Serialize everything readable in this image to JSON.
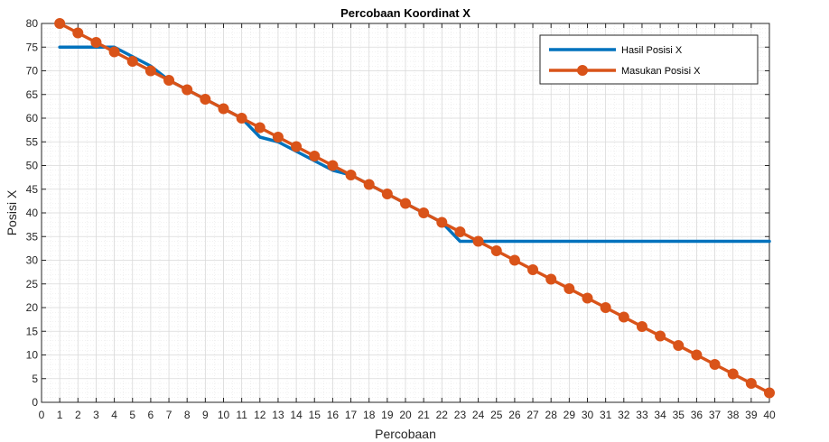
{
  "chart_data": {
    "type": "line",
    "title": "Percobaan Koordinat X",
    "xlabel": "Percobaan",
    "ylabel": "Posisi X",
    "xlim": [
      0,
      40
    ],
    "ylim": [
      0,
      80
    ],
    "xticks": [
      0,
      1,
      2,
      3,
      4,
      5,
      6,
      7,
      8,
      9,
      10,
      11,
      12,
      13,
      14,
      15,
      16,
      17,
      18,
      19,
      20,
      21,
      22,
      23,
      24,
      25,
      26,
      27,
      28,
      29,
      30,
      31,
      32,
      33,
      34,
      35,
      36,
      37,
      38,
      39,
      40
    ],
    "yticks": [
      0,
      5,
      10,
      15,
      20,
      25,
      30,
      35,
      40,
      45,
      50,
      55,
      60,
      65,
      70,
      75,
      80
    ],
    "grid": true,
    "minor_grid": true,
    "legend_position": "top-right",
    "series": [
      {
        "name": "Hasil Posisi X",
        "color": "#0072BD",
        "marker": "none",
        "x": [
          1,
          2,
          3,
          4,
          5,
          6,
          7,
          8,
          9,
          10,
          11,
          12,
          13,
          14,
          15,
          16,
          17,
          18,
          19,
          20,
          21,
          22,
          23,
          24,
          25,
          26,
          27,
          28,
          29,
          30,
          31,
          32,
          33,
          34,
          35,
          36,
          37,
          38,
          39,
          40
        ],
        "values": [
          75,
          75,
          75,
          75,
          73,
          71,
          68,
          66,
          64,
          62,
          60,
          56,
          55,
          53,
          51,
          49,
          48,
          46,
          44,
          42,
          40,
          38,
          34,
          34,
          34,
          34,
          34,
          34,
          34,
          34,
          34,
          34,
          34,
          34,
          34,
          34,
          34,
          34,
          34,
          34
        ]
      },
      {
        "name": "Masukan Posisi X",
        "color": "#D95319",
        "marker": "circle",
        "x": [
          1,
          2,
          3,
          4,
          5,
          6,
          7,
          8,
          9,
          10,
          11,
          12,
          13,
          14,
          15,
          16,
          17,
          18,
          19,
          20,
          21,
          22,
          23,
          24,
          25,
          26,
          27,
          28,
          29,
          30,
          31,
          32,
          33,
          34,
          35,
          36,
          37,
          38,
          39,
          40
        ],
        "values": [
          80,
          78,
          76,
          74,
          72,
          70,
          68,
          66,
          64,
          62,
          60,
          58,
          56,
          54,
          52,
          50,
          48,
          46,
          44,
          42,
          40,
          38,
          36,
          34,
          32,
          30,
          28,
          26,
          24,
          22,
          20,
          18,
          16,
          14,
          12,
          10,
          8,
          6,
          4,
          2
        ]
      }
    ]
  }
}
